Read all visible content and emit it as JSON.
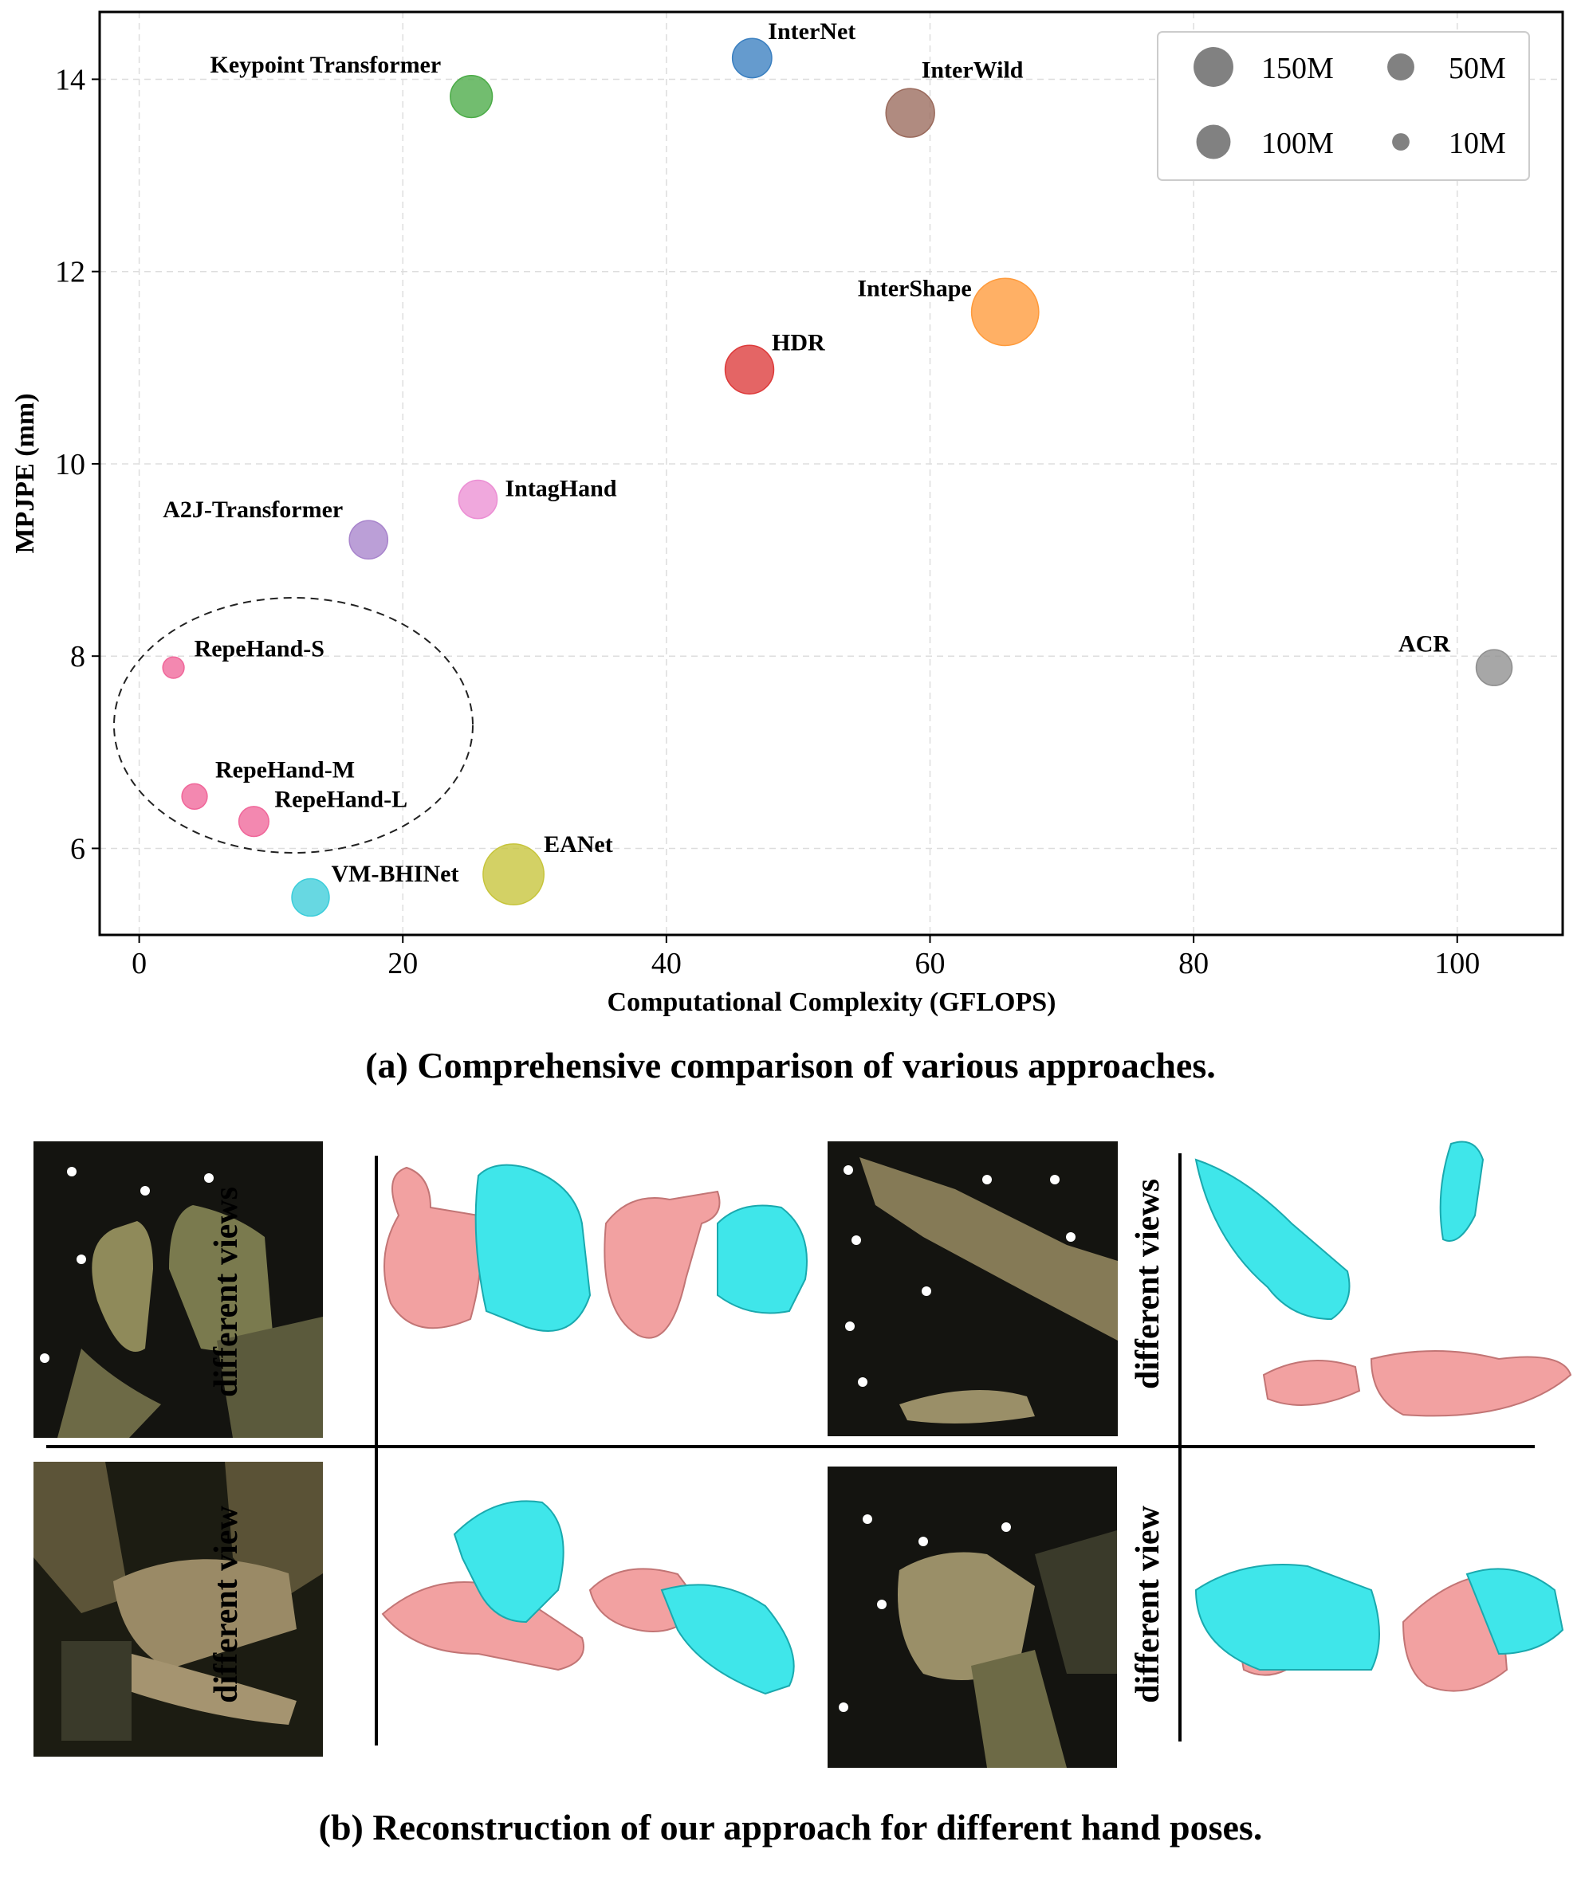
{
  "chart_data": {
    "type": "scatter",
    "xlabel": "Computational Complexity (GFLOPS)",
    "ylabel": "MPJPE (mm)",
    "xlim": [
      -3,
      108
    ],
    "ylim": [
      5.1,
      14.7
    ],
    "xticks": [
      0,
      20,
      40,
      60,
      80,
      100
    ],
    "yticks": [
      6,
      8,
      10,
      12,
      14
    ],
    "grid": true,
    "legend_placement": "top-right",
    "legend": [
      {
        "label": "150M",
        "size": 150
      },
      {
        "label": "50M",
        "size": 50
      },
      {
        "label": "100M",
        "size": 100
      },
      {
        "label": "10M",
        "size": 10
      }
    ],
    "points": [
      {
        "name": "InterNet",
        "x": 46.5,
        "y": 14.22,
        "size": 32,
        "color": "#3a7fc0"
      },
      {
        "name": "Keypoint Transformer",
        "x": 25.2,
        "y": 13.82,
        "size": 38,
        "color": "#4aab46"
      },
      {
        "name": "InterWild",
        "x": 58.5,
        "y": 13.65,
        "size": 55,
        "color": "#9a6a5c"
      },
      {
        "name": "InterShape",
        "x": 65.7,
        "y": 11.58,
        "size": 120,
        "color": "#ff9a3a"
      },
      {
        "name": "HDR",
        "x": 46.3,
        "y": 10.98,
        "size": 55,
        "color": "#dd3a3a"
      },
      {
        "name": "IntagHand",
        "x": 25.7,
        "y": 9.63,
        "size": 30,
        "color": "#ec8fd4"
      },
      {
        "name": "A2J-Transformer",
        "x": 17.4,
        "y": 9.21,
        "size": 30,
        "color": "#a884cc"
      },
      {
        "name": "RepeHand-S",
        "x": 2.6,
        "y": 7.88,
        "size": 5,
        "color": "#f0679a"
      },
      {
        "name": "ACR",
        "x": 102.8,
        "y": 7.88,
        "size": 25,
        "color": "#8e8e8e"
      },
      {
        "name": "RepeHand-M",
        "x": 4.2,
        "y": 6.54,
        "size": 9,
        "color": "#f0679a"
      },
      {
        "name": "RepeHand-L",
        "x": 8.7,
        "y": 6.28,
        "size": 15,
        "color": "#f0679a"
      },
      {
        "name": "VM-BHINet",
        "x": 13.0,
        "y": 5.49,
        "size": 28,
        "color": "#3ccdda"
      },
      {
        "name": "EANet",
        "x": 28.4,
        "y": 5.73,
        "size": 95,
        "color": "#c6c43a"
      }
    ]
  },
  "captions": {
    "a": "(a) Comprehensive comparison of various approaches.",
    "b": "(b) Reconstruction of our approach for different hand poses."
  },
  "panels": {
    "top_left_label": "different views",
    "top_right_label": "different views",
    "bottom_left_label": "different view",
    "bottom_right_label": "different view"
  },
  "colors": {
    "left_hand": "#f2a1a1",
    "right_hand": "#3fe6ea",
    "photo_bg": "#121208"
  }
}
